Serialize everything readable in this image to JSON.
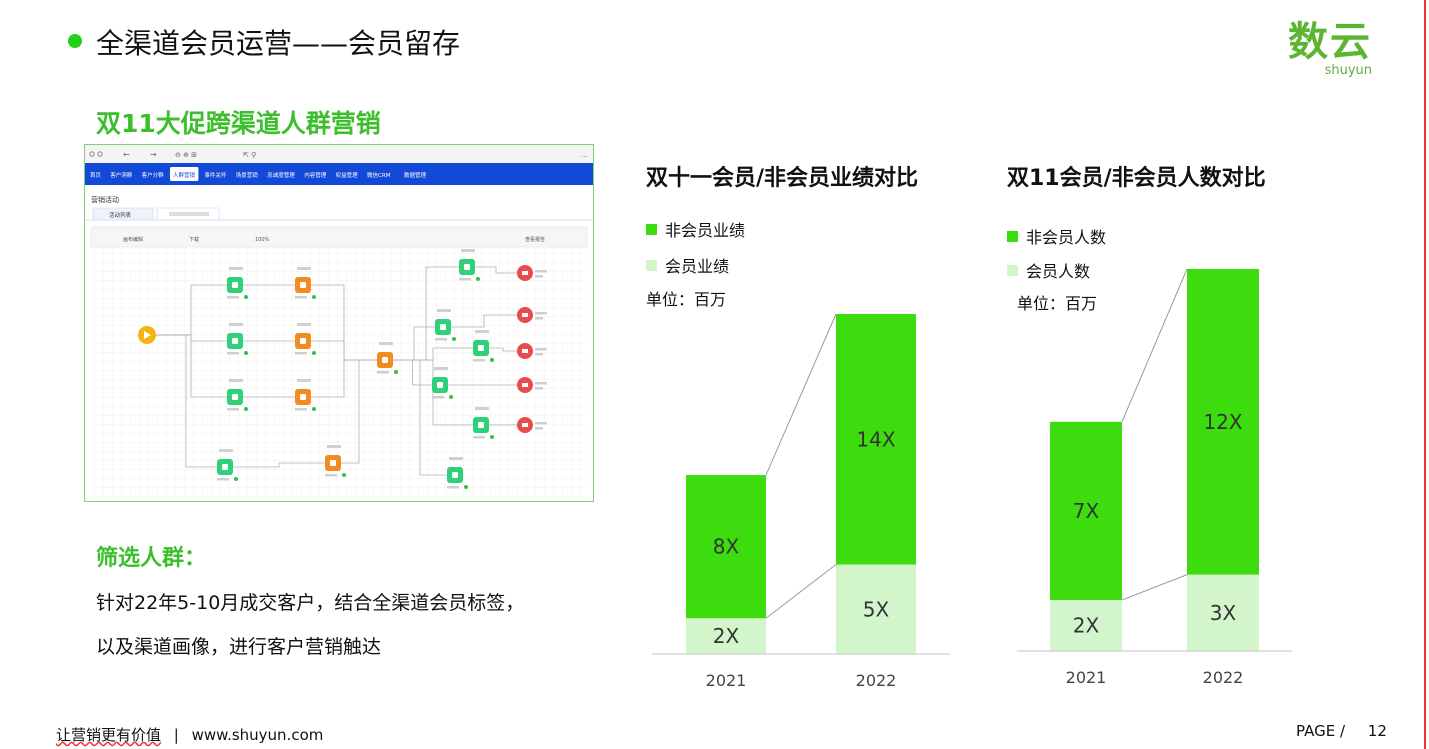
{
  "page": {
    "title": "全渠道会员运营——会员留存",
    "logo_main": "数云",
    "logo_sub": "shuyun",
    "subtitle": "双11大促跨渠道人群营销",
    "filter_title": "筛选人群：",
    "desc_lines": [
      "针对22年5-10月成交客户，结合全渠道会员标签，",
      "以及渠道画像，进行客户营销触达"
    ],
    "footer_slogan": "让营销更有价值",
    "footer_sep": "|",
    "footer_url": "www.shuyun.com",
    "page_label": "PAGE  /",
    "page_number": "12"
  },
  "screenshot": {
    "nav_items": [
      "首页",
      "客户洞察",
      "客户分群",
      "人群营销",
      "事件关怀",
      "场景营销",
      "忠诚度管理",
      "内容管理",
      "权益管理",
      "微信CRM",
      "数据管理"
    ],
    "active_nav": "人群营销",
    "section": "营销活动",
    "tab_label": "活动列表",
    "toolbar": [
      "画布编辑",
      "下载",
      "100%",
      "查看报告"
    ]
  },
  "colors": {
    "accent": "#3bbf2a",
    "bar_dark": "#3ddc0e",
    "bar_light": "#d2f5cc",
    "nav_blue": "#1249d6"
  },
  "chart_data": [
    {
      "type": "bar",
      "stacked": true,
      "title": "双十一会员/非会员业绩对比",
      "unit": "单位：百万",
      "categories": [
        "2021",
        "2022"
      ],
      "series": [
        {
          "name": "会员业绩",
          "values": [
            2,
            5
          ],
          "labels": [
            "2X",
            "5X"
          ]
        },
        {
          "name": "非会员业绩",
          "values": [
            8,
            14
          ],
          "labels": [
            "8X",
            "14X"
          ]
        }
      ],
      "legend": [
        "非会员业绩",
        "会员业绩"
      ],
      "ylim": [
        0,
        20
      ]
    },
    {
      "type": "bar",
      "stacked": true,
      "title": "双11会员/非会员人数对比",
      "unit": "单位：百万",
      "categories": [
        "2021",
        "2022"
      ],
      "series": [
        {
          "name": "会员人数",
          "values": [
            2,
            3
          ],
          "labels": [
            "2X",
            "3X"
          ]
        },
        {
          "name": "非会员人数",
          "values": [
            7,
            12
          ],
          "labels": [
            "7X",
            "12X"
          ]
        }
      ],
      "legend": [
        "非会员人数",
        "会员人数"
      ],
      "ylim": [
        0,
        15
      ]
    }
  ]
}
